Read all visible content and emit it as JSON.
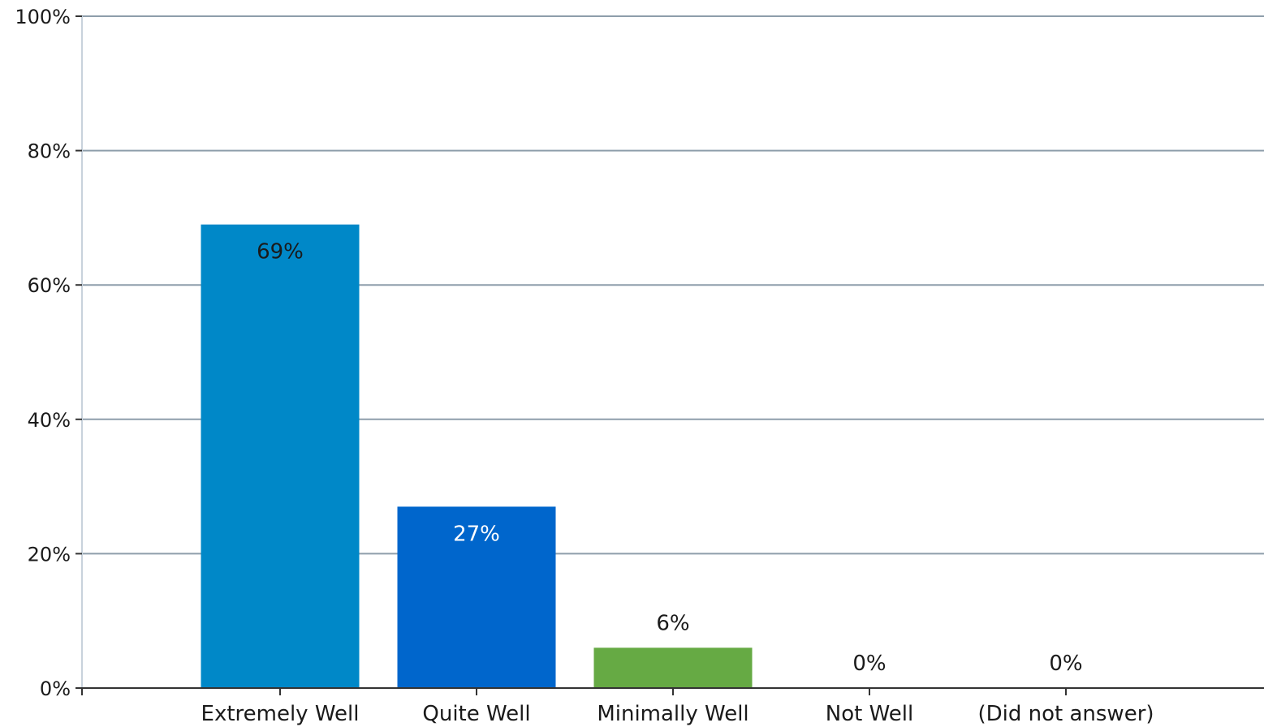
{
  "chart_data": {
    "type": "bar",
    "categories": [
      "Extremely Well",
      "Quite Well",
      "Minimally Well",
      "Not Well",
      "(Did not answer)"
    ],
    "values": [
      69,
      27,
      6,
      0,
      0
    ],
    "data_labels": [
      "69%",
      "27%",
      "6%",
      "0%",
      "0%"
    ],
    "bar_colors": [
      "#0088c8",
      "#0066cc",
      "#66aa44",
      "#0088c8",
      "#0088c8"
    ],
    "data_label_colors": [
      "#1a1a1a",
      "#ffffff",
      "#1a1a1a",
      "#1a1a1a",
      "#1a1a1a"
    ],
    "ylim": [
      0,
      100
    ],
    "y_ticks": [
      0,
      20,
      40,
      60,
      80,
      100
    ],
    "y_tick_labels": [
      "0%",
      "20%",
      "40%",
      "60%",
      "80%",
      "100%"
    ],
    "grid": true,
    "legend": "none",
    "title": "",
    "xlabel": "",
    "ylabel": ""
  }
}
